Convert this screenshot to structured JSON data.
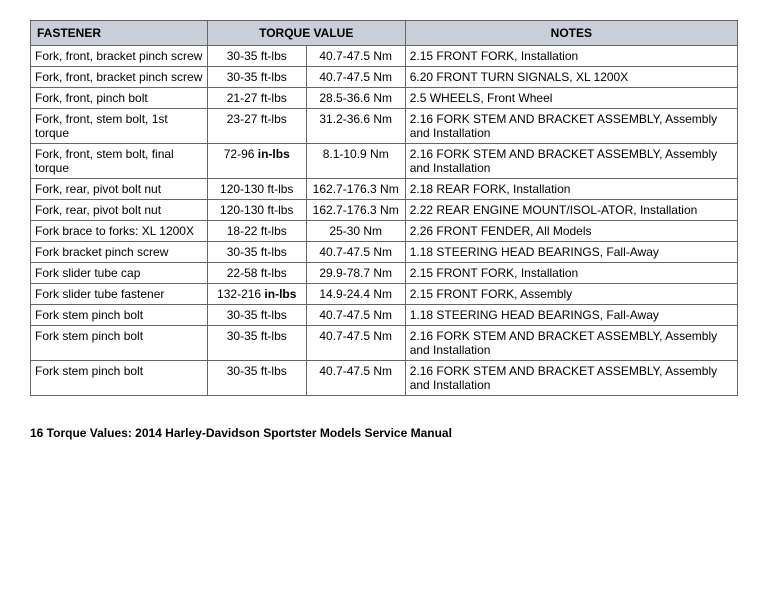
{
  "table": {
    "headers": {
      "fastener": "FASTENER",
      "torque_value": "TORQUE VALUE",
      "notes": "NOTES"
    },
    "rows": [
      {
        "fastener": "Fork, front, bracket pinch screw",
        "tv1": "30-35 ft-lbs",
        "tv2": "40.7-47.5 Nm",
        "notes": "2.15 FRONT FORK, Installation"
      },
      {
        "fastener": "Fork, front, bracket pinch screw",
        "tv1": "30-35 ft-lbs",
        "tv2": "40.7-47.5 Nm",
        "notes": "6.20 FRONT TURN SIGNALS, XL 1200X"
      },
      {
        "fastener": "Fork, front, pinch bolt",
        "tv1": "21-27 ft-lbs",
        "tv2": "28.5-36.6 Nm",
        "notes": "2.5 WHEELS, Front Wheel"
      },
      {
        "fastener": "Fork, front, stem bolt, 1st torque",
        "tv1": "23-27 ft-lbs",
        "tv2": "31.2-36.6 Nm",
        "notes": "2.16 FORK STEM AND BRACKET ASSEMBLY, Assembly and Installation"
      },
      {
        "fastener": "Fork, front, stem bolt, final torque",
        "tv1": "72-96 in-lbs",
        "tv2": "8.1-10.9 Nm",
        "notes": "2.16 FORK STEM AND BRACKET ASSEMBLY, Assembly and Installation"
      },
      {
        "fastener": "Fork, rear, pivot bolt nut",
        "tv1": "120-130 ft-lbs",
        "tv2": "162.7-176.3 Nm",
        "notes": "2.18 REAR FORK, Installation"
      },
      {
        "fastener": "Fork, rear, pivot bolt nut",
        "tv1": "120-130 ft-lbs",
        "tv2": "162.7-176.3 Nm",
        "notes": "2.22 REAR ENGINE MOUNT/ISOL-ATOR, Installation"
      },
      {
        "fastener": "Fork brace to forks: XL 1200X",
        "tv1": "18-22 ft-lbs",
        "tv2": "25-30 Nm",
        "notes": "2.26 FRONT FENDER, All Models"
      },
      {
        "fastener": "Fork bracket pinch screw",
        "tv1": "30-35 ft-lbs",
        "tv2": "40.7-47.5 Nm",
        "notes": "1.18 STEERING HEAD BEARINGS, Fall-Away"
      },
      {
        "fastener": "Fork slider tube cap",
        "tv1": "22-58 ft-lbs",
        "tv2": "29.9-78.7 Nm",
        "notes": "2.15 FRONT FORK, Installation"
      },
      {
        "fastener": "Fork slider tube fastener",
        "tv1": "132-216 in-lbs",
        "tv2": "14.9-24.4 Nm",
        "notes": "2.15 FRONT FORK, Assembly"
      },
      {
        "fastener": "Fork stem pinch bolt",
        "tv1": "30-35 ft-lbs",
        "tv2": "40.7-47.5 Nm",
        "notes": "1.18 STEERING HEAD BEARINGS, Fall-Away"
      },
      {
        "fastener": "Fork stem pinch bolt",
        "tv1": "30-35 ft-lbs",
        "tv2": "40.7-47.5 Nm",
        "notes": "2.16 FORK STEM AND BRACKET ASSEMBLY, Assembly and Installation"
      },
      {
        "fastener": "Fork stem pinch bolt",
        "tv1": "30-35 ft-lbs",
        "tv2": "40.7-47.5 Nm",
        "notes": "2.16 FORK STEM AND BRACKET ASSEMBLY, Assembly and Installation"
      }
    ]
  },
  "footer": "16  Torque Values:  2014 Harley-Davidson Sportster Models Service Manual"
}
